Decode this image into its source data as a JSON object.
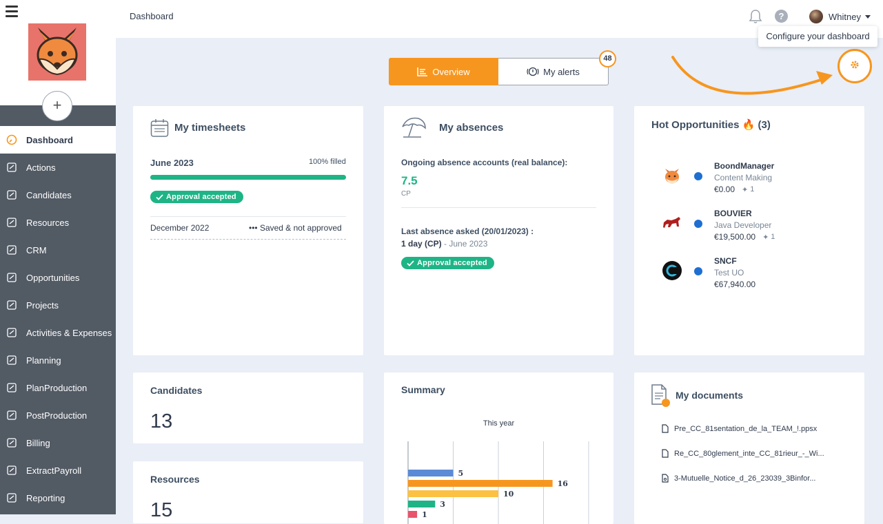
{
  "header": {
    "breadcrumb": "Dashboard",
    "user_name": "Whitney"
  },
  "tooltip": "Configure your dashboard",
  "sidebar": {
    "items": [
      {
        "label": "Dashboard",
        "icon": "gauge-icon",
        "active": true
      },
      {
        "label": "Actions",
        "icon": "edit-icon"
      },
      {
        "label": "Candidates",
        "icon": "graduation-cap-icon"
      },
      {
        "label": "Resources",
        "icon": "users-icon"
      },
      {
        "label": "CRM",
        "icon": "sitemap-icon"
      },
      {
        "label": "Opportunities",
        "icon": "crosshair-icon"
      },
      {
        "label": "Projects",
        "icon": "briefcase-icon"
      },
      {
        "label": "Activities & Expenses",
        "icon": "edit-icon"
      },
      {
        "label": "Planning",
        "icon": "calendar-icon"
      },
      {
        "label": "PlanProduction",
        "icon": "gantt-icon"
      },
      {
        "label": "PostProduction",
        "icon": "clipboard-icon"
      },
      {
        "label": "Billing",
        "icon": "invoice-icon"
      },
      {
        "label": "ExtractPayroll",
        "icon": "payroll-icon"
      },
      {
        "label": "Reporting",
        "icon": "chart-line-icon"
      }
    ]
  },
  "tabs": {
    "overview": "Overview",
    "alerts": "My alerts",
    "alerts_count": "48"
  },
  "timesheets": {
    "title": "My timesheets",
    "current_month": "June 2023",
    "filled_label": "100% filled",
    "filled_percent": 100,
    "approval": "Approval accepted",
    "past_month": "December 2022",
    "past_status": "••• Saved & not approved"
  },
  "absences": {
    "title": "My absences",
    "accounts_label": "Ongoing absence accounts (real balance):",
    "balance": "7.5",
    "balance_unit": "CP",
    "last_label": "Last absence asked (20/01/2023) :",
    "last_value": "1 day (CP)",
    "last_month": " - June 2023",
    "approval": "Approval accepted"
  },
  "hot": {
    "title": "Hot Opportunities 🔥 (3)",
    "items": [
      {
        "name": "BoondManager",
        "sub": "Content Making",
        "amount": "€0.00",
        "pins": "1"
      },
      {
        "name": "BOUVIER",
        "sub": "Java Developer",
        "amount": "€19,500.00",
        "pins": "1"
      },
      {
        "name": "SNCF",
        "sub": "Test UO",
        "amount": "€67,940.00",
        "pins": ""
      }
    ]
  },
  "candidates": {
    "title": "Candidates",
    "count": "13"
  },
  "resources": {
    "title": "Resources",
    "count": "15"
  },
  "summary": {
    "title": "Summary"
  },
  "chart_data": {
    "type": "bar",
    "title": "This year",
    "orientation": "horizontal",
    "values": [
      5,
      16,
      10,
      3,
      1
    ],
    "colors": [
      "#5b8bd6",
      "#f7961e",
      "#fcc142",
      "#1fb486",
      "#e8546b"
    ],
    "xlim": [
      0,
      20
    ],
    "grid": true
  },
  "documents": {
    "title": "My documents",
    "items": [
      {
        "name": "Pre_CC_81sentation_de_la_TEAM_!.ppsx"
      },
      {
        "name": "Re_CC_80glement_inte_CC_81rieur_-_Wi..."
      },
      {
        "name": "3-Mutuelle_Notice_d_26_23039_3Binfor..."
      }
    ]
  }
}
